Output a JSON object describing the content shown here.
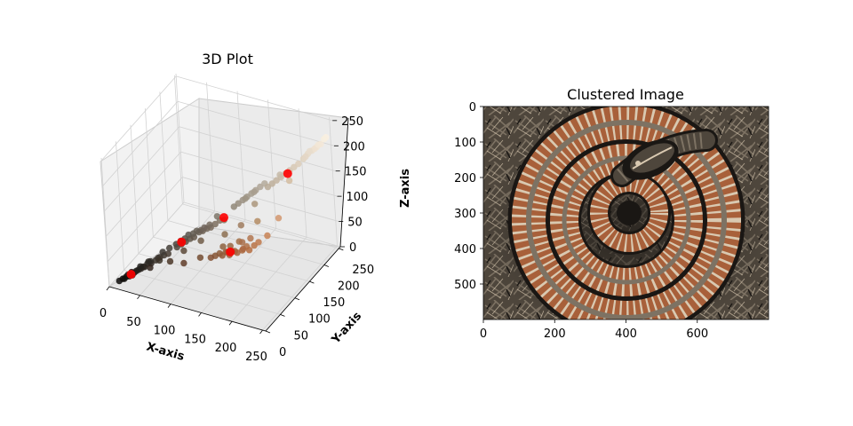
{
  "chart_data": [
    {
      "type": "scatter3d",
      "title": "3D Plot",
      "xlabel": "X-axis",
      "ylabel": "Y-axis",
      "zlabel": "Z-axis",
      "xlim": [
        0,
        255
      ],
      "ylim": [
        0,
        255
      ],
      "zlim": [
        0,
        255
      ],
      "x_ticks": [
        "0",
        "50",
        "100",
        "150",
        "200",
        "250"
      ],
      "y_ticks": [
        "0",
        "50",
        "100",
        "150",
        "200",
        "250"
      ],
      "z_ticks": [
        "0",
        "50",
        "100",
        "150",
        "200",
        "250"
      ],
      "grid": true,
      "series": [
        {
          "marker": "circle",
          "points": [
            [
              20,
              18,
              15
            ],
            [
              25,
              22,
              18
            ],
            [
              30,
              25,
              22
            ],
            [
              28,
              24,
              20
            ],
            [
              35,
              30,
              26
            ],
            [
              40,
              35,
              30
            ],
            [
              45,
              40,
              35
            ],
            [
              38,
              32,
              28
            ],
            [
              50,
              42,
              36
            ],
            [
              55,
              48,
              40
            ],
            [
              22,
              20,
              18
            ],
            [
              32,
              28,
              24
            ],
            [
              42,
              36,
              30
            ],
            [
              48,
              44,
              38
            ],
            [
              60,
              52,
              45
            ],
            [
              65,
              56,
              48
            ],
            [
              70,
              60,
              50
            ],
            [
              58,
              50,
              44
            ],
            [
              36,
              34,
              30
            ],
            [
              26,
              24,
              22
            ],
            [
              80,
              70,
              60
            ],
            [
              90,
              80,
              68
            ],
            [
              100,
              88,
              75
            ],
            [
              85,
              75,
              64
            ],
            [
              95,
              85,
              72
            ],
            [
              110,
              98,
              84
            ],
            [
              105,
              95,
              82
            ],
            [
              120,
              105,
              90
            ],
            [
              115,
              102,
              88
            ],
            [
              125,
              110,
              95
            ],
            [
              78,
              72,
              64
            ],
            [
              88,
              82,
              72
            ],
            [
              98,
              90,
              80
            ],
            [
              108,
              96,
              86
            ],
            [
              118,
              106,
              94
            ],
            [
              92,
              86,
              78
            ],
            [
              102,
              94,
              84
            ],
            [
              112,
              100,
              90
            ],
            [
              130,
              116,
              100
            ],
            [
              84,
              76,
              70
            ],
            [
              140,
              90,
              55
            ],
            [
              150,
              95,
              58
            ],
            [
              160,
              100,
              60
            ],
            [
              170,
              105,
              62
            ],
            [
              155,
              92,
              56
            ],
            [
              165,
              98,
              60
            ],
            [
              175,
              110,
              68
            ],
            [
              145,
              88,
              54
            ],
            [
              185,
              115,
              70
            ],
            [
              180,
              108,
              64
            ],
            [
              135,
              85,
              52
            ],
            [
              190,
              120,
              75
            ],
            [
              158,
              96,
              62
            ],
            [
              172,
              104,
              66
            ],
            [
              148,
              94,
              58
            ],
            [
              162,
              112,
              72
            ],
            [
              178,
              118,
              80
            ],
            [
              152,
              102,
              66
            ],
            [
              168,
              110,
              74
            ],
            [
              142,
              98,
              64
            ],
            [
              150,
              140,
              125
            ],
            [
              160,
              150,
              135
            ],
            [
              170,
              160,
              145
            ],
            [
              155,
              145,
              130
            ],
            [
              165,
              155,
              140
            ],
            [
              175,
              165,
              150
            ],
            [
              145,
              135,
              120
            ],
            [
              180,
              170,
              155
            ],
            [
              158,
              148,
              132
            ],
            [
              168,
              158,
              142
            ],
            [
              190,
              175,
              155
            ],
            [
              200,
              185,
              165
            ],
            [
              210,
              195,
              175
            ],
            [
              195,
              180,
              160
            ],
            [
              205,
              190,
              170
            ],
            [
              215,
              200,
              180
            ],
            [
              220,
              205,
              185
            ],
            [
              225,
              212,
              192
            ],
            [
              185,
              170,
              150
            ],
            [
              198,
              186,
              168
            ],
            [
              230,
              218,
              200
            ],
            [
              235,
              222,
              205
            ],
            [
              240,
              228,
              210
            ],
            [
              228,
              214,
              196
            ],
            [
              245,
              232,
              215
            ],
            [
              238,
              225,
              208
            ],
            [
              250,
              240,
              225
            ],
            [
              232,
              220,
              204
            ],
            [
              242,
              230,
              214
            ],
            [
              248,
              238,
              222
            ],
            [
              60,
              50,
              40
            ],
            [
              130,
              80,
              50
            ],
            [
              95,
              60,
              40
            ],
            [
              200,
              130,
              85
            ],
            [
              70,
              65,
              58
            ],
            [
              115,
              75,
              48
            ],
            [
              210,
              150,
              110
            ],
            [
              125,
              118,
              105
            ],
            [
              160,
              125,
              95
            ],
            [
              90,
              72,
              55
            ],
            [
              50,
              38,
              30
            ],
            [
              75,
              55,
              40
            ],
            [
              140,
              110,
              80
            ],
            [
              180,
              140,
              100
            ],
            [
              110,
              90,
              70
            ],
            [
              212,
              188,
              160
            ],
            [
              172,
              150,
              125
            ],
            [
              135,
              120,
              100
            ],
            [
              62,
              58,
              52
            ],
            [
              46,
              42,
              38
            ],
            [
              12,
              10,
              9
            ],
            [
              18,
              15,
              12
            ],
            [
              24,
              20,
              16
            ],
            [
              16,
              14,
              12
            ],
            [
              28,
              22,
              18
            ]
          ]
        }
      ],
      "centroids": [
        [
          26,
          22,
          19
        ],
        [
          85,
          76,
          68
        ],
        [
          135,
          120,
          105
        ],
        [
          155,
          95,
          60
        ],
        [
          208,
          192,
          170
        ]
      ],
      "centroid_color": "#ff0000"
    },
    {
      "type": "image",
      "title": "Clustered Image",
      "xlim": [
        0,
        800
      ],
      "ylim": [
        600,
        0
      ],
      "x_ticks": [
        "0",
        "200",
        "400",
        "600"
      ],
      "y_ticks": [
        "0",
        "100",
        "200",
        "300",
        "400",
        "500"
      ],
      "palette": [
        "#1a1714",
        "#4e463c",
        "#7d7263",
        "#a8603a",
        "#d9c9b1"
      ]
    }
  ]
}
